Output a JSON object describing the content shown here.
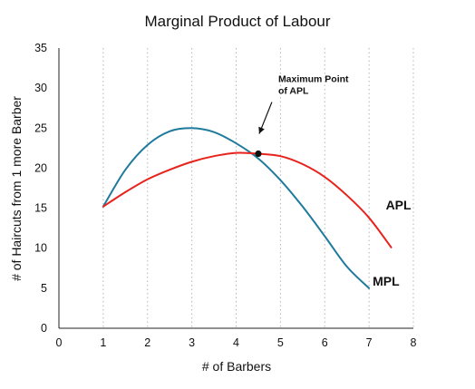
{
  "chart_data": {
    "type": "line",
    "title": "Marginal Product of Labour",
    "xlabel": "# of Barbers",
    "ylabel": "# of Haircuts from 1 more Barber",
    "xlim": [
      0,
      8
    ],
    "ylim": [
      0,
      35
    ],
    "x_ticks": [
      "0",
      "1",
      "2",
      "3",
      "4",
      "5",
      "6",
      "7",
      "8"
    ],
    "y_ticks": [
      "0",
      "5",
      "10",
      "15",
      "20",
      "25",
      "30",
      "35"
    ],
    "grid": {
      "vertical": true,
      "horizontal": false
    },
    "series": [
      {
        "name": "MPL",
        "color": "#1f7a9c",
        "x": [
          1,
          1.5,
          2,
          2.5,
          3,
          3.5,
          4,
          4.5,
          5,
          5.5,
          6,
          6.5,
          7
        ],
        "y": [
          15.2,
          19.8,
          22.9,
          24.6,
          25.0,
          24.5,
          23.1,
          21.2,
          18.5,
          15.2,
          11.5,
          7.7,
          5.0
        ]
      },
      {
        "name": "APL",
        "color": "#e8231c",
        "x": [
          1,
          1.5,
          2,
          2.5,
          3,
          3.5,
          4,
          4.5,
          5,
          5.5,
          6,
          6.5,
          7,
          7.5
        ],
        "y": [
          15.2,
          17.0,
          18.6,
          19.8,
          20.8,
          21.5,
          21.9,
          21.8,
          21.5,
          20.5,
          18.9,
          16.6,
          13.8,
          10.1
        ]
      }
    ],
    "annotations": [
      {
        "text": [
          "Maximum Point",
          "of APL"
        ],
        "x": 4.5,
        "y": 21.8,
        "arrow": true
      }
    ]
  }
}
